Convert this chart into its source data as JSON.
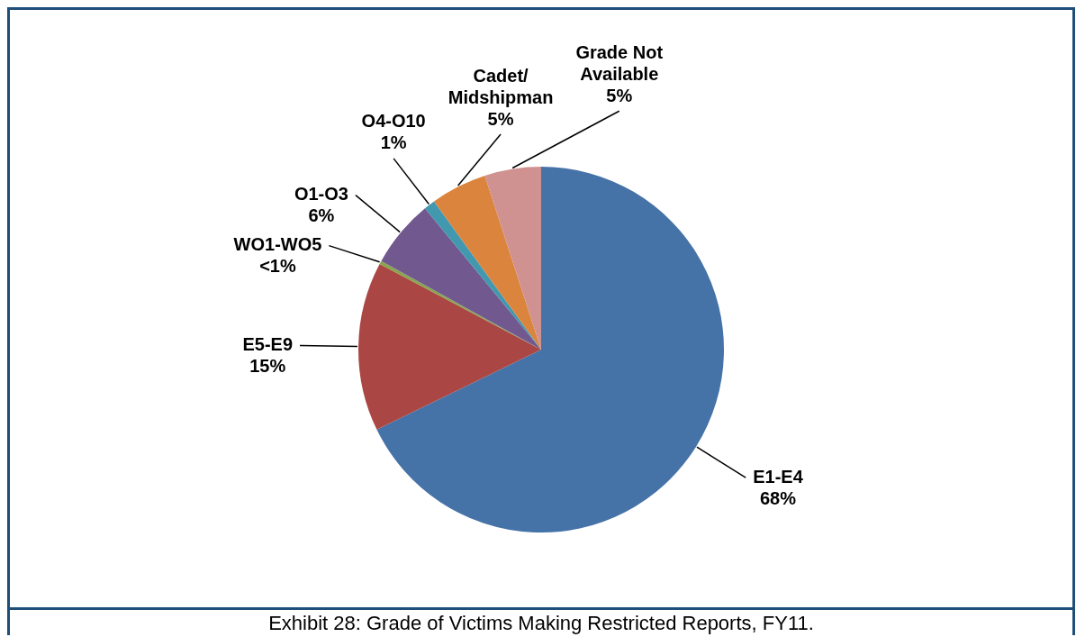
{
  "chart_data": {
    "type": "pie",
    "categories": [
      "E1-E4",
      "E5-E9",
      "WO1-WO5",
      "O1-O3",
      "O4-O10",
      "Cadet/ Midshipman",
      "Grade Not Available"
    ],
    "values": [
      68,
      15,
      0.3,
      6,
      1,
      5,
      5
    ],
    "value_labels": [
      "68%",
      "15%",
      "<1%",
      "6%",
      "1%",
      "5%",
      "5%"
    ],
    "colors": [
      "#4572a7",
      "#aa4643",
      "#89a54e",
      "#71588f",
      "#4198af",
      "#db843d",
      "#d09291"
    ],
    "legend": false,
    "annotations": [
      "Exhibit 28:  Grade of Victims Making Restricted Reports, FY11."
    ]
  }
}
